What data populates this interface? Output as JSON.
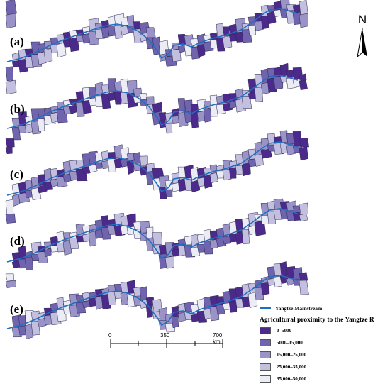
{
  "panels": [
    {
      "label": "(a)"
    },
    {
      "label": "(b)"
    },
    {
      "label": "(c)"
    },
    {
      "label": "(d)"
    },
    {
      "label": "(e)"
    }
  ],
  "north_arrow": {
    "letter": "N"
  },
  "legend": {
    "river_label": "Yangtze Mainstream",
    "river_color": "#1f6fc0",
    "title": "Agricultural proximity to the Yangtze R",
    "classes": [
      {
        "label": "0–5000",
        "color": "#4b2a8c"
      },
      {
        "label": "5000–15,000",
        "color": "#6f64ad"
      },
      {
        "label": "15,000–25,000",
        "color": "#9a93c8"
      },
      {
        "label": "25,000–35,000",
        "color": "#c3bfdf"
      },
      {
        "label": "35,000–50,000",
        "color": "#ececf5"
      }
    ]
  },
  "scale_bar": {
    "labels": [
      "0",
      "350",
      "700 km"
    ]
  }
}
